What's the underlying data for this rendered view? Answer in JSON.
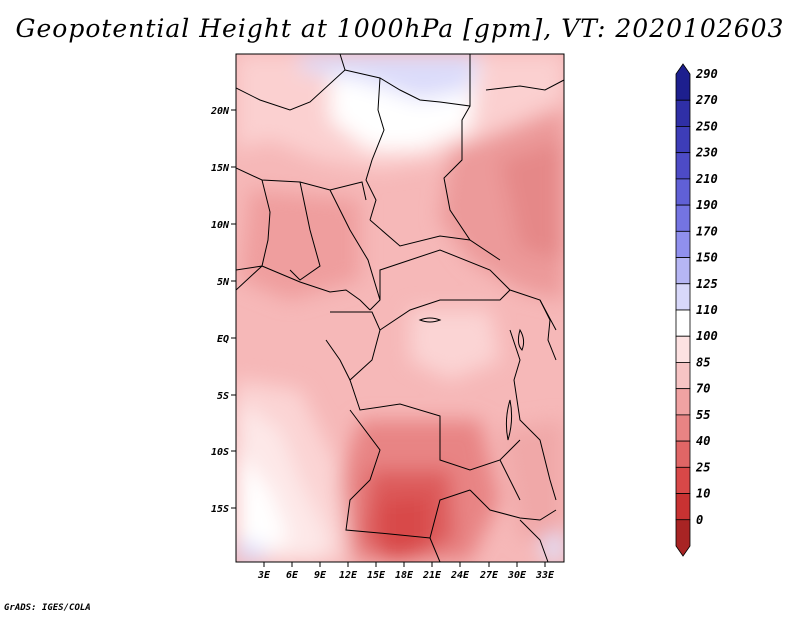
{
  "title": "Geopotential Height at 1000hPa [gpm], VT: 2020102603",
  "credit": "GrADS: IGES/COLA",
  "map": {
    "lat_labels": [
      "20N",
      "15N",
      "10N",
      "5N",
      "EQ",
      "5S",
      "10S",
      "15S"
    ],
    "lon_labels": [
      "3E",
      "6E",
      "9E",
      "12E",
      "15E",
      "18E",
      "21E",
      "24E",
      "27E",
      "30E",
      "33E"
    ]
  },
  "colorbar": {
    "labels": [
      "290",
      "270",
      "250",
      "230",
      "210",
      "190",
      "170",
      "150",
      "125",
      "110",
      "100",
      "85",
      "70",
      "55",
      "40",
      "25",
      "10",
      "0"
    ],
    "colors": [
      "#1d1f8e",
      "#2f2fa6",
      "#3d3db8",
      "#4d4bc6",
      "#6060d6",
      "#7474e2",
      "#9090ee",
      "#b6b6f4",
      "#d8d8fa",
      "#ffffff",
      "#fde2e2",
      "#f7c4c4",
      "#f0a2a2",
      "#e88484",
      "#e06666",
      "#d84848",
      "#c83232",
      "#a82424"
    ]
  }
}
